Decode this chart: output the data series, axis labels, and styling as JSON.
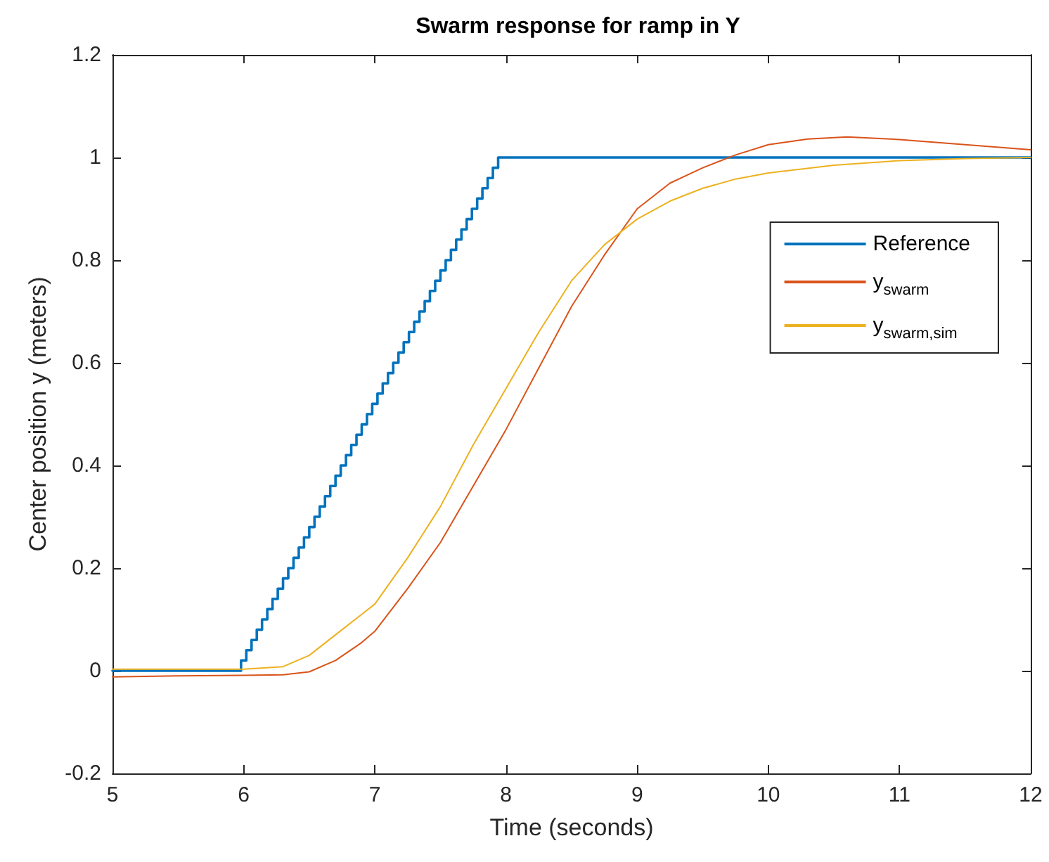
{
  "chart_data": {
    "type": "line",
    "title": "Swarm response for ramp in Y",
    "xlabel": "Time (seconds)",
    "ylabel": "Center position y (meters)",
    "xlim": [
      5,
      12
    ],
    "xticks": [
      5,
      6,
      7,
      8,
      9,
      10,
      11,
      12
    ],
    "ylim": [
      -0.2,
      1.2
    ],
    "yticks": [
      -0.2,
      0,
      0.2,
      0.4,
      0.6,
      0.8,
      1,
      1.2
    ],
    "grid": false,
    "legend": "right",
    "marker": "none",
    "line_style": "solid",
    "series": [
      {
        "name": "Reference",
        "type": "step",
        "color": "#0072bd",
        "x": [
          5,
          5.98,
          6.02,
          6.06,
          6.1,
          6.14,
          6.18,
          6.22,
          6.26,
          6.3,
          6.34,
          6.38,
          6.42,
          6.46,
          6.5,
          6.54,
          6.58,
          6.62,
          6.66,
          6.7,
          6.74,
          6.78,
          6.82,
          6.86,
          6.9,
          6.94,
          6.98,
          7.02,
          7.06,
          7.1,
          7.14,
          7.18,
          7.22,
          7.26,
          7.3,
          7.34,
          7.38,
          7.42,
          7.46,
          7.5,
          7.54,
          7.58,
          7.62,
          7.66,
          7.7,
          7.74,
          7.78,
          7.82,
          7.86,
          7.9,
          7.94,
          12
        ],
        "values": [
          0,
          0.02,
          0.04,
          0.06,
          0.08,
          0.1,
          0.12,
          0.14,
          0.16,
          0.18,
          0.2,
          0.22,
          0.24,
          0.26,
          0.28,
          0.3,
          0.32,
          0.34,
          0.36,
          0.38,
          0.4,
          0.42,
          0.44,
          0.46,
          0.48,
          0.5,
          0.52,
          0.54,
          0.56,
          0.58,
          0.6,
          0.62,
          0.64,
          0.66,
          0.68,
          0.7,
          0.72,
          0.74,
          0.76,
          0.78,
          0.8,
          0.82,
          0.84,
          0.86,
          0.88,
          0.9,
          0.92,
          0.94,
          0.96,
          0.98,
          1,
          1
        ]
      },
      {
        "name": "y$_{swarm}$",
        "type": "line",
        "color": "#d95319",
        "x": [
          5,
          5.5,
          6,
          6.3,
          6.5,
          6.7,
          6.9,
          7,
          7.25,
          7.5,
          7.75,
          8,
          8.25,
          8.5,
          8.75,
          9,
          9.25,
          9.5,
          9.75,
          10,
          10.3,
          10.6,
          11,
          11.5,
          12
        ],
        "values": [
          -0.012,
          -0.01,
          -0.009,
          -0.008,
          -0.002,
          0.02,
          0.055,
          0.077,
          0.16,
          0.25,
          0.36,
          0.47,
          0.59,
          0.71,
          0.81,
          0.9,
          0.95,
          0.98,
          1.005,
          1.025,
          1.036,
          1.04,
          1.035,
          1.025,
          1.015
        ]
      },
      {
        "name": "y$_{swarm,sim}$",
        "type": "line",
        "color": "#edb120",
        "x": [
          5,
          5.5,
          6,
          6.3,
          6.5,
          6.7,
          6.9,
          7,
          7.25,
          7.5,
          7.75,
          8,
          8.25,
          8.5,
          8.75,
          9,
          9.25,
          9.5,
          9.75,
          10,
          10.5,
          11,
          11.5,
          12
        ],
        "values": [
          0.003,
          0.003,
          0.003,
          0.008,
          0.03,
          0.07,
          0.11,
          0.13,
          0.22,
          0.32,
          0.44,
          0.55,
          0.66,
          0.76,
          0.83,
          0.88,
          0.915,
          0.94,
          0.958,
          0.97,
          0.985,
          0.994,
          0.998,
          1
        ]
      }
    ]
  }
}
